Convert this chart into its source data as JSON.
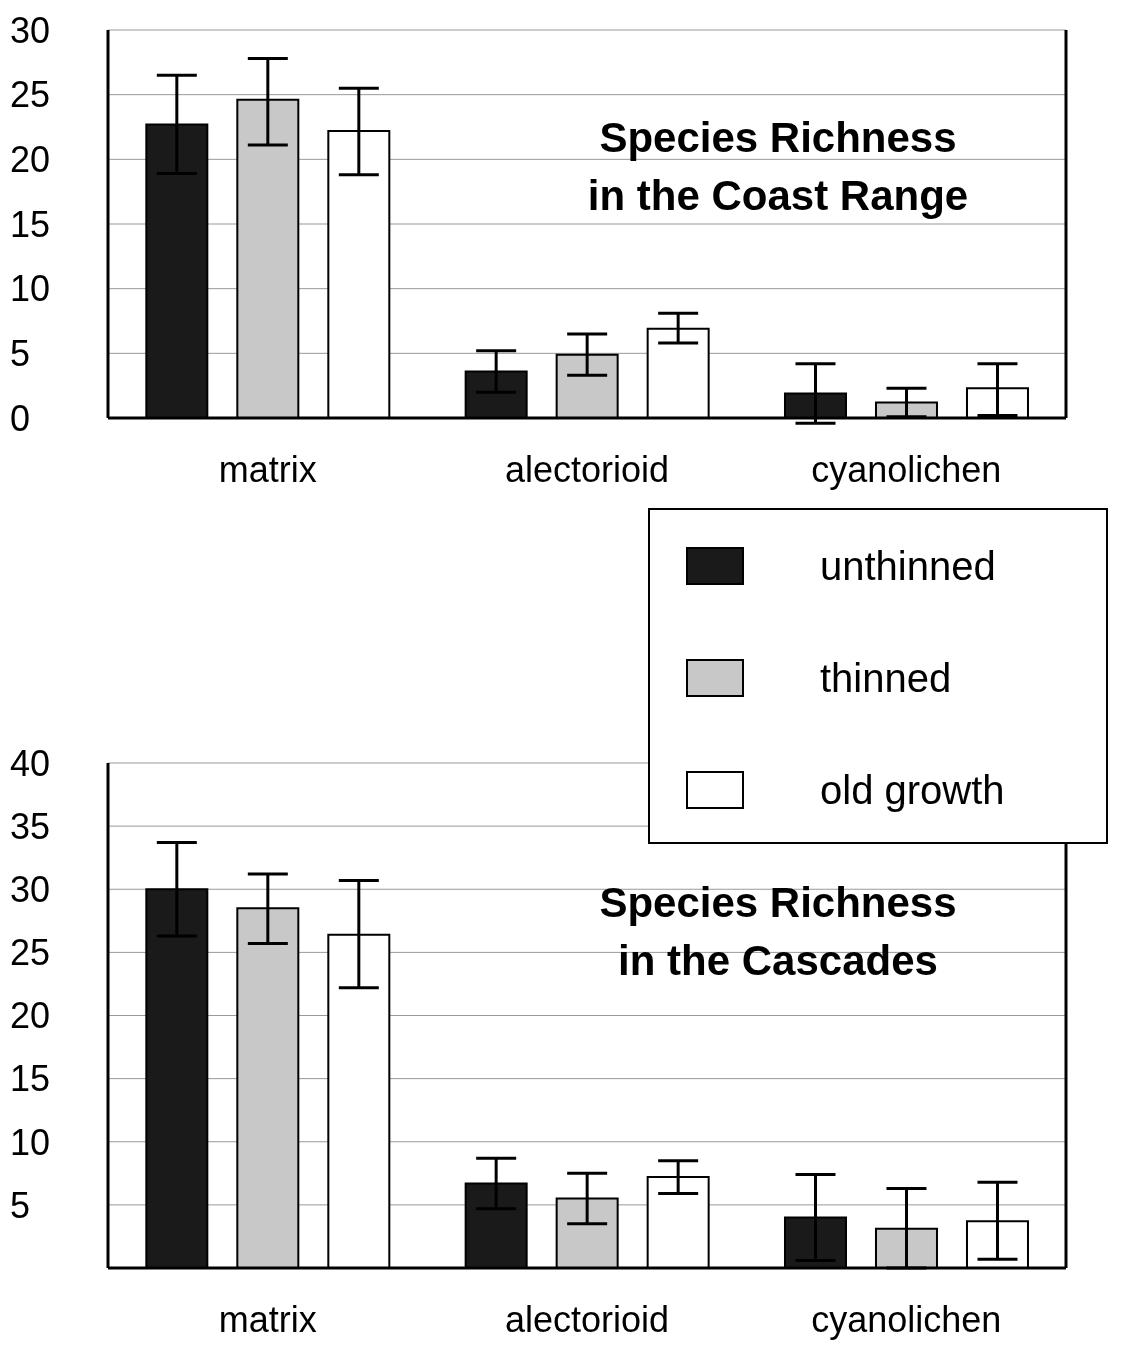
{
  "chart_data": [
    {
      "type": "bar",
      "title": "Species Richness\nin the Coast Range",
      "categories": [
        "matrix",
        "alectorioid",
        "cyanolichen"
      ],
      "ylim": [
        0,
        30
      ],
      "yticks": [
        0,
        5,
        10,
        15,
        20,
        25,
        30
      ],
      "grid": "y",
      "legend": false,
      "series": [
        {
          "color": "#1a1a1a",
          "values": [
            22.7,
            3.6,
            1.9
          ],
          "errors": [
            [
              18.9,
              26.5
            ],
            [
              2.0,
              5.2
            ],
            [
              -0.4,
              4.2
            ]
          ]
        },
        {
          "color": "#c8c8c8",
          "values": [
            24.6,
            4.9,
            1.2
          ],
          "errors": [
            [
              21.1,
              27.8
            ],
            [
              3.3,
              6.5
            ],
            [
              0.1,
              2.3
            ]
          ]
        },
        {
          "color": "#ffffff",
          "values": [
            22.2,
            6.9,
            2.3
          ],
          "errors": [
            [
              18.8,
              25.5
            ],
            [
              5.8,
              8.1
            ],
            [
              0.2,
              4.2
            ]
          ]
        }
      ]
    },
    {
      "type": "bar",
      "title": "Species Richness\nin the Cascades",
      "categories": [
        "matrix",
        "alectorioid",
        "cyanolichen"
      ],
      "ylim": [
        0,
        40
      ],
      "yticks": [
        5,
        10,
        15,
        20,
        25,
        30,
        35,
        40
      ],
      "grid": "y",
      "legend": "top right",
      "series": [
        {
          "name": "unthinned",
          "color": "#1a1a1a",
          "values": [
            30.0,
            6.7,
            4.0
          ],
          "errors": [
            [
              26.3,
              33.7
            ],
            [
              4.7,
              8.7
            ],
            [
              0.6,
              7.4
            ]
          ]
        },
        {
          "name": "thinned",
          "color": "#c8c8c8",
          "values": [
            28.5,
            5.5,
            3.1
          ],
          "errors": [
            [
              25.7,
              31.2
            ],
            [
              3.5,
              7.5
            ],
            [
              0,
              6.3
            ]
          ]
        },
        {
          "name": "old growth",
          "color": "#ffffff",
          "values": [
            26.4,
            7.2,
            3.7
          ],
          "errors": [
            [
              22.2,
              30.7
            ],
            [
              5.9,
              8.5
            ],
            [
              0.7,
              6.8
            ]
          ]
        }
      ]
    }
  ]
}
